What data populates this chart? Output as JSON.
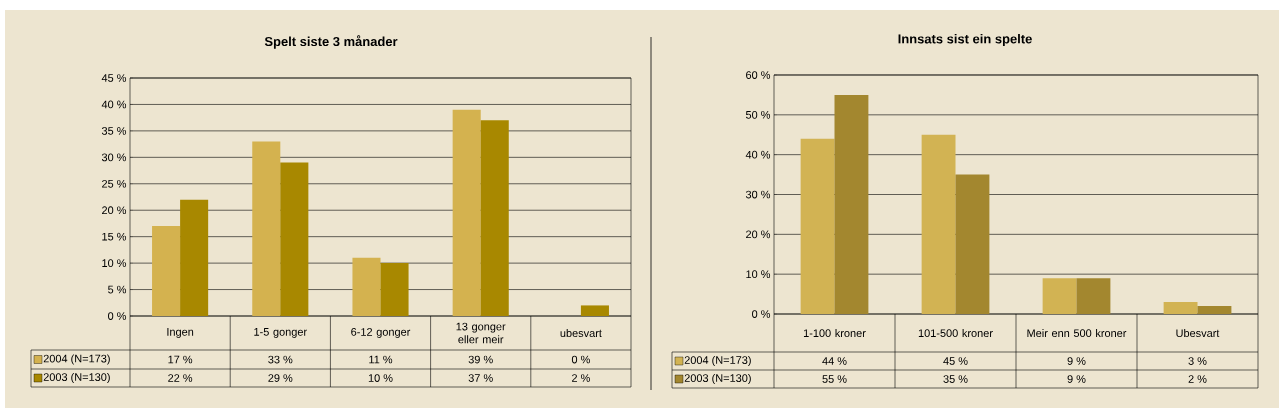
{
  "chart_data": [
    {
      "type": "bar",
      "title": "Spelt siste 3 månader",
      "categories": [
        "Ingen",
        "1-5 gonger",
        "6-12 gonger",
        "13 gonger eller meir",
        "ubesvart"
      ],
      "series": [
        {
          "name": "2004 (N=173)",
          "color": "#d4b24f",
          "values": [
            17,
            33,
            11,
            39,
            0
          ],
          "value_labels": [
            "17 %",
            "33 %",
            "11 %",
            "39 %",
            "0 %"
          ]
        },
        {
          "name": "2003 (N=130)",
          "color": "#a88800",
          "values": [
            22,
            29,
            10,
            37,
            2
          ],
          "value_labels": [
            "22 %",
            "29 %",
            "10 %",
            "37 %",
            "2 %"
          ]
        }
      ],
      "ylim": [
        0,
        45
      ],
      "yticks": [
        {
          "value": 0,
          "label": "0 %"
        },
        {
          "value": 5,
          "label": "5 %"
        },
        {
          "value": 10,
          "label": "10 %"
        },
        {
          "value": 15,
          "label": "15 %"
        },
        {
          "value": 20,
          "label": "20 %"
        },
        {
          "value": 25,
          "label": "25 %"
        },
        {
          "value": 30,
          "label": "30 %"
        },
        {
          "value": 35,
          "label": "35 %"
        },
        {
          "value": 40,
          "label": "40 %"
        },
        {
          "value": 45,
          "label": "45 %"
        }
      ],
      "grid": "y",
      "legend": "bottom left"
    },
    {
      "type": "bar",
      "title": "Innsats sist ein spelte",
      "categories": [
        "1-100 kroner",
        "101-500 kroner",
        "Meir enn 500 kroner",
        "Ubesvart"
      ],
      "series": [
        {
          "name": "2004 (N=173)",
          "color": "#d2b353",
          "values": [
            44,
            45,
            9,
            3
          ],
          "value_labels": [
            "44 %",
            "45 %",
            "9 %",
            "3 %"
          ]
        },
        {
          "name": "2003 (N=130)",
          "color": "#a3872f",
          "values": [
            55,
            35,
            9,
            2
          ],
          "value_labels": [
            "55 %",
            "35 %",
            "9 %",
            "2 %"
          ]
        }
      ],
      "ylim": [
        0,
        60
      ],
      "yticks": [
        {
          "value": 0,
          "label": "0 %"
        },
        {
          "value": 10,
          "label": "10 %"
        },
        {
          "value": 20,
          "label": "20 %"
        },
        {
          "value": 30,
          "label": "30 %"
        },
        {
          "value": 40,
          "label": "40 %"
        },
        {
          "value": 50,
          "label": "50 %"
        },
        {
          "value": 60,
          "label": "60 %"
        }
      ],
      "grid": "y",
      "legend": "bottom left"
    }
  ]
}
